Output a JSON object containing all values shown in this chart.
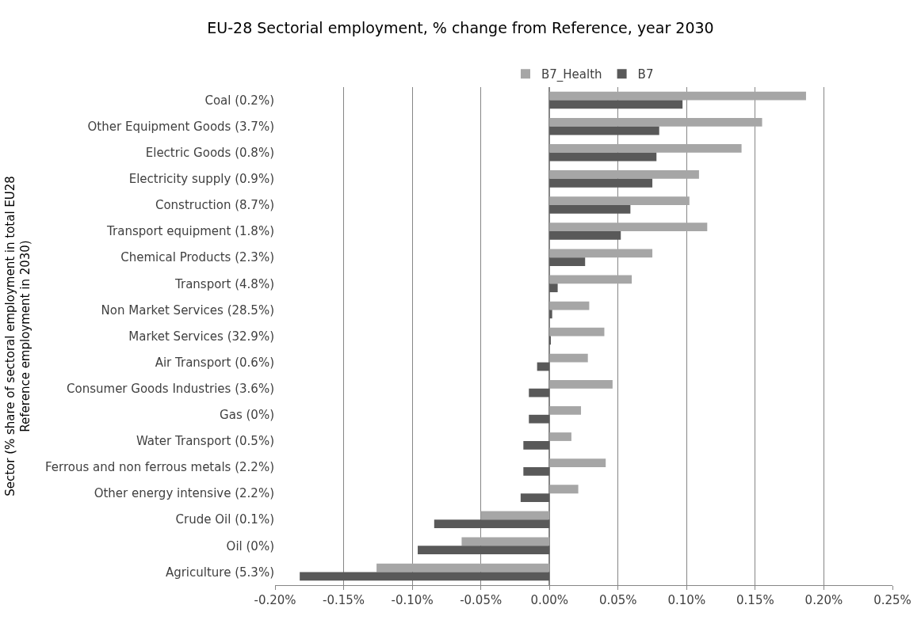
{
  "chart_data": {
    "type": "bar",
    "orientation": "horizontal",
    "title": "EU-28 Sectorial employment, % change from Reference, year 2030",
    "ylabel": "Sector (% share of sectoral employment in total EU28\nReference employment in 2030)",
    "categories": [
      "Coal (0.2%)",
      "Other Equipment Goods (3.7%)",
      "Electric Goods (0.8%)",
      "Electricity supply (0.9%)",
      "Construction (8.7%)",
      "Transport equipment (1.8%)",
      "Chemical Products (2.3%)",
      "Transport (4.8%)",
      "Non Market Services (28.5%)",
      "Market Services (32.9%)",
      "Air Transport (0.6%)",
      "Consumer Goods Industries (3.6%)",
      "Gas (0%)",
      "Water Transport (0.5%)",
      "Ferrous and non ferrous metals (2.2%)",
      "Other energy intensive (2.2%)",
      "Crude Oil (0.1%)",
      "Oil (0%)",
      "Agriculture (5.3%)"
    ],
    "series": [
      {
        "name": "B7_Health",
        "color": "#a6a6a6",
        "values": [
          0.187,
          0.155,
          0.14,
          0.109,
          0.102,
          0.115,
          0.075,
          0.06,
          0.029,
          0.04,
          0.028,
          0.046,
          0.023,
          0.016,
          0.041,
          0.021,
          -0.05,
          -0.064,
          -0.126
        ]
      },
      {
        "name": "B7",
        "color": "#595959",
        "values": [
          0.097,
          0.08,
          0.078,
          0.075,
          0.059,
          0.052,
          0.026,
          0.006,
          0.002,
          0.001,
          -0.009,
          -0.015,
          -0.015,
          -0.019,
          -0.019,
          -0.021,
          -0.084,
          -0.096,
          -0.182
        ]
      }
    ],
    "xlim": [
      -0.2,
      0.25
    ],
    "xticks": [
      {
        "value": -0.2,
        "label": "-0.20%"
      },
      {
        "value": -0.15,
        "label": "-0.15%"
      },
      {
        "value": -0.1,
        "label": "-0.10%"
      },
      {
        "value": -0.05,
        "label": "-0.05%"
      },
      {
        "value": 0,
        "label": "0.00%"
      },
      {
        "value": 0.05,
        "label": "0.05%"
      },
      {
        "value": 0.1,
        "label": "0.10%"
      },
      {
        "value": 0.15,
        "label": "0.15%"
      },
      {
        "value": 0.2,
        "label": "0.20%"
      },
      {
        "value": 0.25,
        "label": "0.25%"
      }
    ],
    "grid": "x",
    "legend": "top"
  }
}
